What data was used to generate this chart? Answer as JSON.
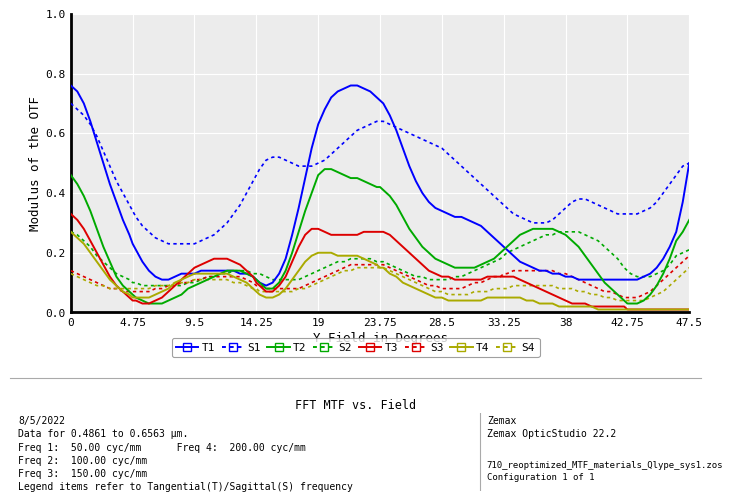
{
  "title": "FFT MTF vs. Field",
  "xlabel": "Y Field in Degrees",
  "ylabel": "Modulus of the OTF",
  "xlim": [
    0,
    47.5
  ],
  "ylim": [
    0,
    1.0
  ],
  "xticks": [
    0,
    4.75,
    9.5,
    14.25,
    19.0,
    23.75,
    28.5,
    33.25,
    38.0,
    42.75,
    47.5
  ],
  "yticks": [
    0,
    0.2,
    0.4,
    0.6,
    0.8,
    1.0
  ],
  "bg_color": "#ffffff",
  "plot_bg_color": "#ececec",
  "grid_color": "#ffffff",
  "info_text_left": "8/5/2022\nData for 0.4861 to 0.6563 μm.\nFreq 1:  50.00 cyc/mm      Freq 4:  200.00 cyc/mm\nFreq 2:  100.00 cyc/mm\nFreq 3:  150.00 cyc/mm\nLegend items refer to Tangential(T)/Sagittal(S) frequency",
  "info_text_right": "Zemax\nZemax OpticStudio 22.2",
  "info_text_right2": "710_reoptimized_MTF_materials_Qlype_sys1.zos\nConfiguration 1 of 1",
  "legend_labels": [
    "T1",
    "S1",
    "T2",
    "S2",
    "T3",
    "S3",
    "T4",
    "S4"
  ],
  "colors": {
    "T1": "#0000ff",
    "S1": "#0000ff",
    "T2": "#00aa00",
    "S2": "#00aa00",
    "T3": "#dd0000",
    "S3": "#dd0000",
    "T4": "#aaaa00",
    "S4": "#aaaa00"
  },
  "x": [
    0,
    0.5,
    1.0,
    1.5,
    2.0,
    2.5,
    3.0,
    3.5,
    4.0,
    4.5,
    4.75,
    5.0,
    5.5,
    6.0,
    6.5,
    7.0,
    7.5,
    8.0,
    8.5,
    9.0,
    9.5,
    10.0,
    10.5,
    11.0,
    11.5,
    12.0,
    12.5,
    13.0,
    13.5,
    14.0,
    14.25,
    14.5,
    15.0,
    15.5,
    16.0,
    16.5,
    17.0,
    17.5,
    18.0,
    18.5,
    19.0,
    19.5,
    20.0,
    20.5,
    21.0,
    21.5,
    22.0,
    22.5,
    23.0,
    23.5,
    23.75,
    24.0,
    24.5,
    25.0,
    25.5,
    26.0,
    26.5,
    27.0,
    27.5,
    28.0,
    28.5,
    29.0,
    29.5,
    30.0,
    30.5,
    31.0,
    31.5,
    32.0,
    32.5,
    33.0,
    33.25,
    33.5,
    34.0,
    34.5,
    35.0,
    35.5,
    36.0,
    36.5,
    37.0,
    37.5,
    38.0,
    38.5,
    39.0,
    39.5,
    40.0,
    40.5,
    41.0,
    41.5,
    42.0,
    42.5,
    42.75,
    43.0,
    43.5,
    44.0,
    44.5,
    45.0,
    45.5,
    46.0,
    46.5,
    47.0,
    47.5
  ],
  "T1": [
    0.76,
    0.74,
    0.7,
    0.64,
    0.57,
    0.5,
    0.43,
    0.37,
    0.31,
    0.26,
    0.23,
    0.21,
    0.17,
    0.14,
    0.12,
    0.11,
    0.11,
    0.12,
    0.13,
    0.13,
    0.13,
    0.14,
    0.14,
    0.14,
    0.14,
    0.14,
    0.14,
    0.13,
    0.13,
    0.12,
    0.11,
    0.1,
    0.09,
    0.1,
    0.13,
    0.18,
    0.26,
    0.35,
    0.45,
    0.55,
    0.63,
    0.68,
    0.72,
    0.74,
    0.75,
    0.76,
    0.76,
    0.75,
    0.74,
    0.72,
    0.71,
    0.7,
    0.66,
    0.61,
    0.55,
    0.49,
    0.44,
    0.4,
    0.37,
    0.35,
    0.34,
    0.33,
    0.32,
    0.32,
    0.31,
    0.3,
    0.29,
    0.27,
    0.25,
    0.23,
    0.22,
    0.21,
    0.19,
    0.17,
    0.16,
    0.15,
    0.14,
    0.14,
    0.13,
    0.13,
    0.12,
    0.12,
    0.11,
    0.11,
    0.11,
    0.11,
    0.11,
    0.11,
    0.11,
    0.11,
    0.11,
    0.11,
    0.11,
    0.12,
    0.13,
    0.15,
    0.18,
    0.22,
    0.27,
    0.37,
    0.5
  ],
  "S1": [
    0.7,
    0.68,
    0.66,
    0.63,
    0.59,
    0.54,
    0.49,
    0.44,
    0.4,
    0.36,
    0.34,
    0.32,
    0.29,
    0.27,
    0.25,
    0.24,
    0.23,
    0.23,
    0.23,
    0.23,
    0.23,
    0.24,
    0.25,
    0.26,
    0.28,
    0.3,
    0.33,
    0.36,
    0.4,
    0.44,
    0.46,
    0.48,
    0.51,
    0.52,
    0.52,
    0.51,
    0.5,
    0.49,
    0.49,
    0.49,
    0.5,
    0.51,
    0.53,
    0.55,
    0.57,
    0.59,
    0.61,
    0.62,
    0.63,
    0.64,
    0.64,
    0.64,
    0.63,
    0.62,
    0.61,
    0.6,
    0.59,
    0.58,
    0.57,
    0.56,
    0.55,
    0.53,
    0.51,
    0.49,
    0.47,
    0.45,
    0.43,
    0.41,
    0.39,
    0.37,
    0.36,
    0.35,
    0.33,
    0.32,
    0.31,
    0.3,
    0.3,
    0.3,
    0.31,
    0.33,
    0.35,
    0.37,
    0.38,
    0.38,
    0.37,
    0.36,
    0.35,
    0.34,
    0.33,
    0.33,
    0.33,
    0.33,
    0.33,
    0.34,
    0.35,
    0.37,
    0.4,
    0.43,
    0.46,
    0.49,
    0.5
  ],
  "T2": [
    0.46,
    0.43,
    0.39,
    0.34,
    0.28,
    0.22,
    0.17,
    0.12,
    0.09,
    0.07,
    0.06,
    0.05,
    0.04,
    0.03,
    0.03,
    0.03,
    0.04,
    0.05,
    0.06,
    0.08,
    0.09,
    0.1,
    0.11,
    0.12,
    0.13,
    0.14,
    0.14,
    0.14,
    0.13,
    0.12,
    0.11,
    0.1,
    0.08,
    0.08,
    0.1,
    0.14,
    0.2,
    0.27,
    0.34,
    0.4,
    0.46,
    0.48,
    0.48,
    0.47,
    0.46,
    0.45,
    0.45,
    0.44,
    0.43,
    0.42,
    0.42,
    0.41,
    0.39,
    0.36,
    0.32,
    0.28,
    0.25,
    0.22,
    0.2,
    0.18,
    0.17,
    0.16,
    0.15,
    0.15,
    0.15,
    0.15,
    0.16,
    0.17,
    0.18,
    0.2,
    0.21,
    0.22,
    0.24,
    0.26,
    0.27,
    0.28,
    0.28,
    0.28,
    0.28,
    0.27,
    0.26,
    0.24,
    0.22,
    0.19,
    0.16,
    0.13,
    0.1,
    0.08,
    0.06,
    0.04,
    0.03,
    0.03,
    0.03,
    0.04,
    0.06,
    0.09,
    0.13,
    0.18,
    0.24,
    0.27,
    0.31
  ],
  "S2": [
    0.27,
    0.26,
    0.24,
    0.22,
    0.19,
    0.17,
    0.15,
    0.13,
    0.12,
    0.11,
    0.1,
    0.1,
    0.09,
    0.09,
    0.09,
    0.09,
    0.09,
    0.09,
    0.09,
    0.1,
    0.1,
    0.11,
    0.12,
    0.12,
    0.13,
    0.13,
    0.14,
    0.14,
    0.14,
    0.13,
    0.13,
    0.13,
    0.12,
    0.11,
    0.11,
    0.11,
    0.11,
    0.11,
    0.12,
    0.13,
    0.14,
    0.15,
    0.16,
    0.17,
    0.17,
    0.18,
    0.18,
    0.18,
    0.18,
    0.17,
    0.17,
    0.17,
    0.16,
    0.15,
    0.14,
    0.13,
    0.12,
    0.12,
    0.11,
    0.11,
    0.11,
    0.11,
    0.12,
    0.12,
    0.13,
    0.14,
    0.15,
    0.16,
    0.17,
    0.18,
    0.19,
    0.2,
    0.21,
    0.22,
    0.23,
    0.24,
    0.25,
    0.26,
    0.26,
    0.27,
    0.27,
    0.27,
    0.27,
    0.26,
    0.25,
    0.24,
    0.22,
    0.2,
    0.18,
    0.15,
    0.14,
    0.13,
    0.12,
    0.12,
    0.12,
    0.13,
    0.14,
    0.16,
    0.19,
    0.2,
    0.21
  ],
  "T3": [
    0.33,
    0.31,
    0.28,
    0.24,
    0.2,
    0.16,
    0.12,
    0.09,
    0.07,
    0.05,
    0.04,
    0.04,
    0.03,
    0.03,
    0.04,
    0.05,
    0.07,
    0.09,
    0.11,
    0.13,
    0.15,
    0.16,
    0.17,
    0.18,
    0.18,
    0.18,
    0.17,
    0.16,
    0.14,
    0.12,
    0.1,
    0.09,
    0.07,
    0.07,
    0.09,
    0.12,
    0.17,
    0.22,
    0.26,
    0.28,
    0.28,
    0.27,
    0.26,
    0.26,
    0.26,
    0.26,
    0.26,
    0.27,
    0.27,
    0.27,
    0.27,
    0.27,
    0.26,
    0.24,
    0.22,
    0.2,
    0.18,
    0.16,
    0.14,
    0.13,
    0.12,
    0.12,
    0.11,
    0.11,
    0.11,
    0.11,
    0.11,
    0.12,
    0.12,
    0.12,
    0.12,
    0.12,
    0.12,
    0.11,
    0.1,
    0.09,
    0.08,
    0.07,
    0.06,
    0.05,
    0.04,
    0.03,
    0.03,
    0.03,
    0.02,
    0.02,
    0.02,
    0.02,
    0.02,
    0.02,
    0.01,
    0.01,
    0.01,
    0.01,
    0.01,
    0.01,
    0.01,
    0.01,
    0.01,
    0.01,
    0.01
  ],
  "S3": [
    0.14,
    0.13,
    0.12,
    0.11,
    0.1,
    0.09,
    0.08,
    0.08,
    0.07,
    0.07,
    0.07,
    0.07,
    0.07,
    0.07,
    0.08,
    0.08,
    0.09,
    0.09,
    0.1,
    0.1,
    0.11,
    0.11,
    0.12,
    0.12,
    0.12,
    0.12,
    0.12,
    0.12,
    0.11,
    0.1,
    0.09,
    0.09,
    0.08,
    0.08,
    0.08,
    0.08,
    0.08,
    0.08,
    0.09,
    0.1,
    0.11,
    0.12,
    0.13,
    0.14,
    0.15,
    0.16,
    0.16,
    0.16,
    0.16,
    0.16,
    0.16,
    0.16,
    0.15,
    0.14,
    0.13,
    0.12,
    0.11,
    0.1,
    0.09,
    0.09,
    0.08,
    0.08,
    0.08,
    0.08,
    0.09,
    0.1,
    0.1,
    0.11,
    0.12,
    0.12,
    0.13,
    0.13,
    0.14,
    0.14,
    0.14,
    0.14,
    0.14,
    0.14,
    0.14,
    0.13,
    0.13,
    0.12,
    0.11,
    0.1,
    0.09,
    0.08,
    0.07,
    0.07,
    0.06,
    0.05,
    0.05,
    0.05,
    0.05,
    0.06,
    0.07,
    0.09,
    0.11,
    0.13,
    0.15,
    0.17,
    0.19
  ],
  "T4": [
    0.27,
    0.25,
    0.23,
    0.2,
    0.17,
    0.14,
    0.11,
    0.09,
    0.07,
    0.06,
    0.05,
    0.05,
    0.05,
    0.05,
    0.06,
    0.07,
    0.08,
    0.1,
    0.11,
    0.12,
    0.13,
    0.13,
    0.13,
    0.13,
    0.13,
    0.13,
    0.12,
    0.11,
    0.1,
    0.08,
    0.07,
    0.06,
    0.05,
    0.05,
    0.06,
    0.08,
    0.11,
    0.14,
    0.17,
    0.19,
    0.2,
    0.2,
    0.2,
    0.19,
    0.19,
    0.19,
    0.19,
    0.18,
    0.17,
    0.16,
    0.15,
    0.15,
    0.13,
    0.12,
    0.1,
    0.09,
    0.08,
    0.07,
    0.06,
    0.05,
    0.05,
    0.04,
    0.04,
    0.04,
    0.04,
    0.04,
    0.04,
    0.05,
    0.05,
    0.05,
    0.05,
    0.05,
    0.05,
    0.05,
    0.04,
    0.04,
    0.03,
    0.03,
    0.03,
    0.02,
    0.02,
    0.02,
    0.02,
    0.02,
    0.02,
    0.01,
    0.01,
    0.01,
    0.01,
    0.01,
    0.01,
    0.01,
    0.01,
    0.01,
    0.01,
    0.01,
    0.01,
    0.01,
    0.01,
    0.01,
    0.01
  ],
  "S4": [
    0.13,
    0.12,
    0.11,
    0.1,
    0.09,
    0.09,
    0.08,
    0.08,
    0.08,
    0.08,
    0.08,
    0.08,
    0.08,
    0.08,
    0.09,
    0.09,
    0.09,
    0.1,
    0.1,
    0.1,
    0.11,
    0.11,
    0.11,
    0.11,
    0.11,
    0.11,
    0.1,
    0.1,
    0.09,
    0.08,
    0.08,
    0.07,
    0.07,
    0.07,
    0.07,
    0.07,
    0.07,
    0.08,
    0.08,
    0.09,
    0.1,
    0.11,
    0.12,
    0.13,
    0.14,
    0.14,
    0.15,
    0.15,
    0.15,
    0.15,
    0.15,
    0.15,
    0.14,
    0.13,
    0.12,
    0.11,
    0.1,
    0.09,
    0.08,
    0.07,
    0.07,
    0.06,
    0.06,
    0.06,
    0.06,
    0.07,
    0.07,
    0.07,
    0.08,
    0.08,
    0.08,
    0.08,
    0.09,
    0.09,
    0.09,
    0.09,
    0.09,
    0.09,
    0.09,
    0.08,
    0.08,
    0.08,
    0.07,
    0.07,
    0.06,
    0.06,
    0.05,
    0.05,
    0.04,
    0.04,
    0.04,
    0.04,
    0.04,
    0.04,
    0.05,
    0.06,
    0.07,
    0.09,
    0.11,
    0.13,
    0.15
  ]
}
